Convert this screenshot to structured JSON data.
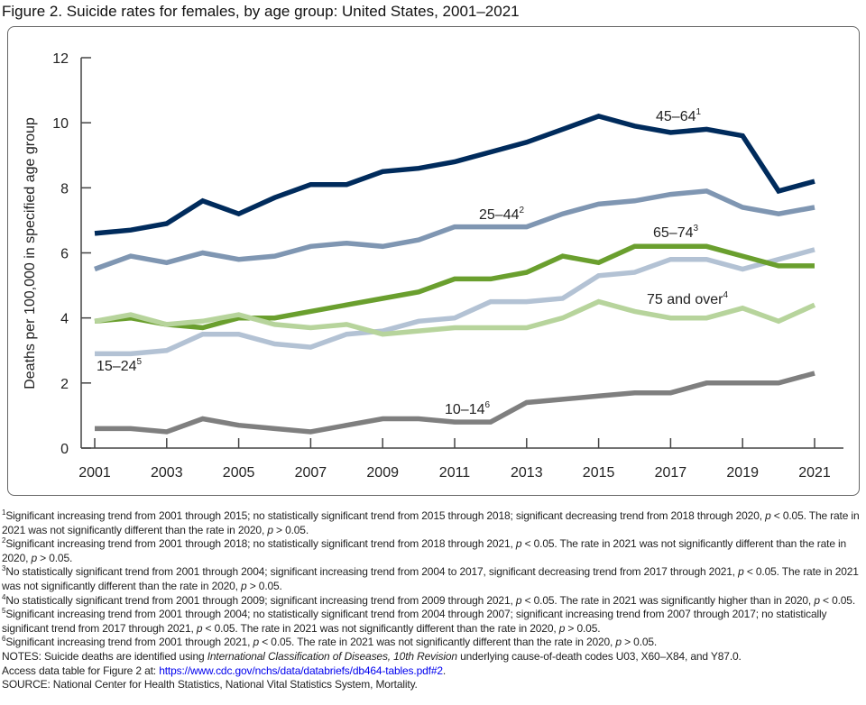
{
  "title": "Figure 2. Suicide rates for females, by age group: United States, 2001–2021",
  "chart_data": {
    "type": "line",
    "title": "Figure 2. Suicide rates for females, by age group: United States, 2001–2021",
    "xlabel": "",
    "ylabel": "Deaths per 100,000 in specified age group",
    "ylim": [
      0,
      12
    ],
    "yticks": [
      0,
      2,
      4,
      6,
      8,
      10,
      12
    ],
    "xticks": [
      2001,
      2003,
      2005,
      2007,
      2009,
      2011,
      2013,
      2015,
      2017,
      2019,
      2021
    ],
    "x": [
      2001,
      2002,
      2003,
      2004,
      2005,
      2006,
      2007,
      2008,
      2009,
      2010,
      2011,
      2012,
      2013,
      2014,
      2015,
      2016,
      2017,
      2018,
      2019,
      2020,
      2021
    ],
    "grid": false,
    "series": [
      {
        "name": "45–64",
        "footnote": "1",
        "color": "#002b5c",
        "values": [
          6.6,
          6.7,
          6.9,
          7.6,
          7.2,
          7.7,
          8.1,
          8.1,
          8.5,
          8.6,
          8.8,
          9.1,
          9.4,
          9.8,
          10.2,
          9.9,
          9.7,
          9.8,
          9.6,
          7.9,
          8.2
        ]
      },
      {
        "name": "25–44",
        "footnote": "2",
        "color": "#7f96b2",
        "values": [
          5.5,
          5.9,
          5.7,
          6.0,
          5.8,
          5.9,
          6.2,
          6.3,
          6.2,
          6.4,
          6.8,
          6.8,
          6.8,
          7.2,
          7.5,
          7.6,
          7.8,
          7.9,
          7.4,
          7.2,
          7.4
        ]
      },
      {
        "name": "65–74",
        "footnote": "3",
        "color": "#6a9f2e",
        "values": [
          3.9,
          4.0,
          3.8,
          3.7,
          4.0,
          4.0,
          4.2,
          4.4,
          4.6,
          4.8,
          5.2,
          5.2,
          5.4,
          5.9,
          5.7,
          6.2,
          6.2,
          6.2,
          5.9,
          5.6,
          5.6
        ]
      },
      {
        "name": "75 and over",
        "footnote": "4",
        "color": "#b7d49c",
        "values": [
          3.9,
          4.1,
          3.8,
          3.9,
          4.1,
          3.8,
          3.7,
          3.8,
          3.5,
          3.6,
          3.7,
          3.7,
          3.7,
          4.0,
          4.5,
          4.2,
          4.0,
          4.0,
          4.3,
          3.9,
          4.4
        ]
      },
      {
        "name": "15–24",
        "footnote": "5",
        "color": "#b3c2d4",
        "values": [
          2.9,
          2.9,
          3.0,
          3.5,
          3.5,
          3.2,
          3.1,
          3.5,
          3.6,
          3.9,
          4.0,
          4.5,
          4.5,
          4.6,
          5.3,
          5.4,
          5.8,
          5.8,
          5.5,
          5.8,
          6.1
        ]
      },
      {
        "name": "10–14",
        "footnote": "6",
        "color": "#7f7f7f",
        "values": [
          0.6,
          0.6,
          0.5,
          0.9,
          0.7,
          0.6,
          0.5,
          0.7,
          0.9,
          0.9,
          0.8,
          0.8,
          1.4,
          1.5,
          1.6,
          1.7,
          1.7,
          2.0,
          2.0,
          2.0,
          2.3
        ]
      }
    ]
  },
  "footnotes": [
    {
      "mark": "1",
      "text": "Significant increasing trend from 2001 through 2015; no statistically significant trend from 2015 through 2018; significant decreasing trend from 2018 through 2020, p < 0.05. The rate in 2021 was not significantly different than the rate in 2020, p > 0.05."
    },
    {
      "mark": "2",
      "text": "Significant increasing trend from 2001 through 2018; no statistically significant trend from 2018 through 2021, p < 0.05. The rate in 2021 was not significantly different than the rate in 2020, p > 0.05."
    },
    {
      "mark": "3",
      "text": "No statistically significant trend from 2001 through 2004; significant increasing trend from 2004 to 2017, significant decreasing trend from 2017 through 2021, p < 0.05. The rate in 2021 was not significantly different than the rate in 2020, p > 0.05."
    },
    {
      "mark": "4",
      "text": "No statistically significant trend from 2001 through 2009; significant increasing trend from 2009 through 2021, p < 0.05. The rate in 2021 was significantly higher than in 2020, p < 0.05."
    },
    {
      "mark": "5",
      "text": "Significant increasing trend from 2001 through 2004; no statistically significant trend from 2004 through 2007; significant increasing trend from 2007 through 2017; no statistically significant trend from 2017 through 2021, p < 0.05. The rate in 2021 was not significantly different than the rate in 2020, p > 0.05."
    },
    {
      "mark": "6",
      "text": "Significant increasing trend from 2001 through 2021, p < 0.05. The rate in 2021 was not significantly different than the rate in 2020, p > 0.05."
    }
  ],
  "notes": {
    "prefix": "NOTES: Suicide deaths are identified using ",
    "italic": "International Classification of Diseases, 10th Revision",
    "suffix": " underlying cause-of-death codes U03, X60–X84, and Y87.0.",
    "access_prefix": "Access data table for Figure 2 at: ",
    "link": "https://www.cdc.gov/nchs/data/databriefs/db464-tables.pdf#2",
    "access_suffix": ".",
    "source": "SOURCE: National Center for Health Statistics, National Vital Statistics System, Mortality."
  }
}
